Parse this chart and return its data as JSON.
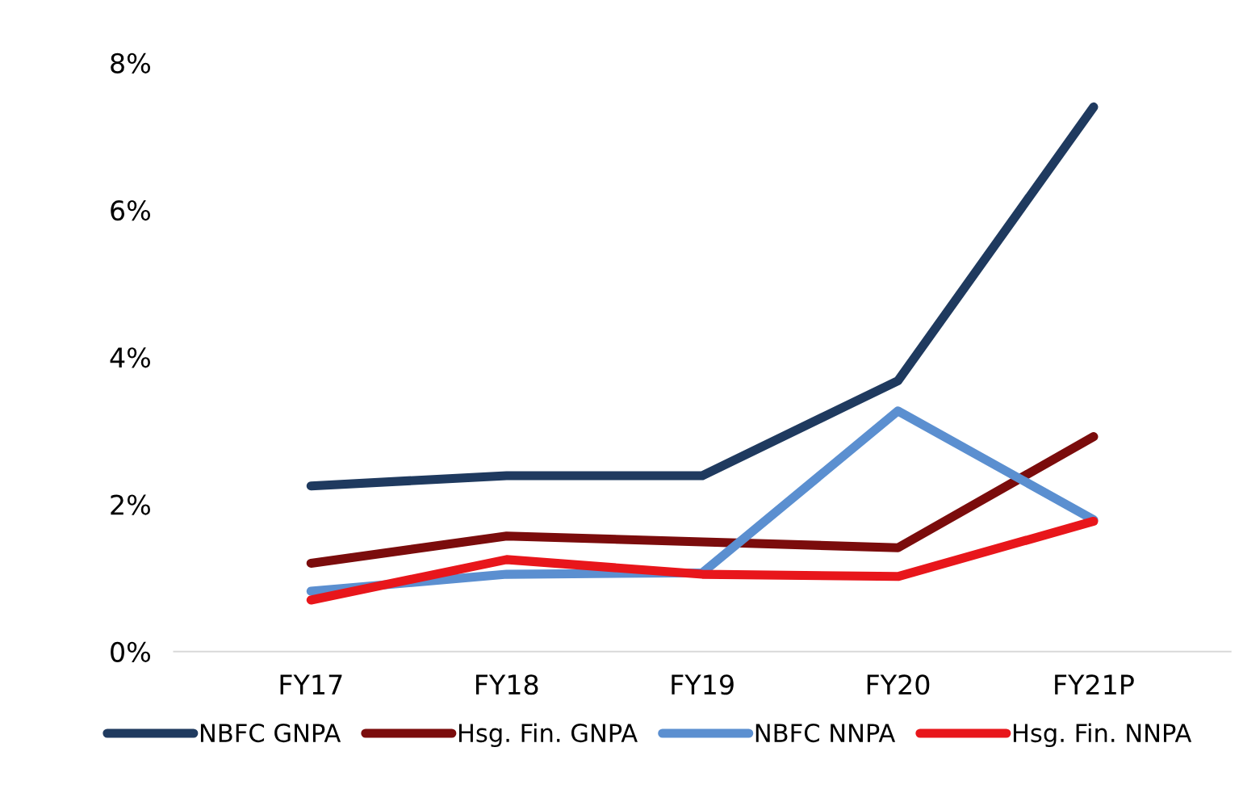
{
  "chart_data": {
    "type": "line",
    "categories": [
      "FY17",
      "FY18",
      "FY19",
      "FY20",
      "FY21P"
    ],
    "series": [
      {
        "name": "NBFC GNPA",
        "color": "#1f3a5f",
        "values": [
          2.25,
          2.39,
          2.39,
          3.68,
          7.4
        ]
      },
      {
        "name": "Hsg. Fin. GNPA",
        "color": "#7b0c0c",
        "values": [
          1.2,
          1.57,
          1.49,
          1.41,
          2.92
        ]
      },
      {
        "name": "NBFC NNPA",
        "color": "#5b8fd0",
        "values": [
          0.82,
          1.05,
          1.07,
          3.27,
          1.79
        ]
      },
      {
        "name": "Hsg. Fin. NNPA",
        "color": "#e8161b",
        "values": [
          0.7,
          1.25,
          1.05,
          1.02,
          1.77
        ]
      }
    ],
    "ylim": [
      0,
      8
    ],
    "yticks": [
      {
        "value": 0,
        "label": "0%"
      },
      {
        "value": 2,
        "label": "2%"
      },
      {
        "value": 4,
        "label": "4%"
      },
      {
        "value": 6,
        "label": "6%"
      },
      {
        "value": 8,
        "label": "8%"
      }
    ],
    "grid": false,
    "legend": "bottom",
    "marker": "none",
    "line_style": "solid"
  }
}
